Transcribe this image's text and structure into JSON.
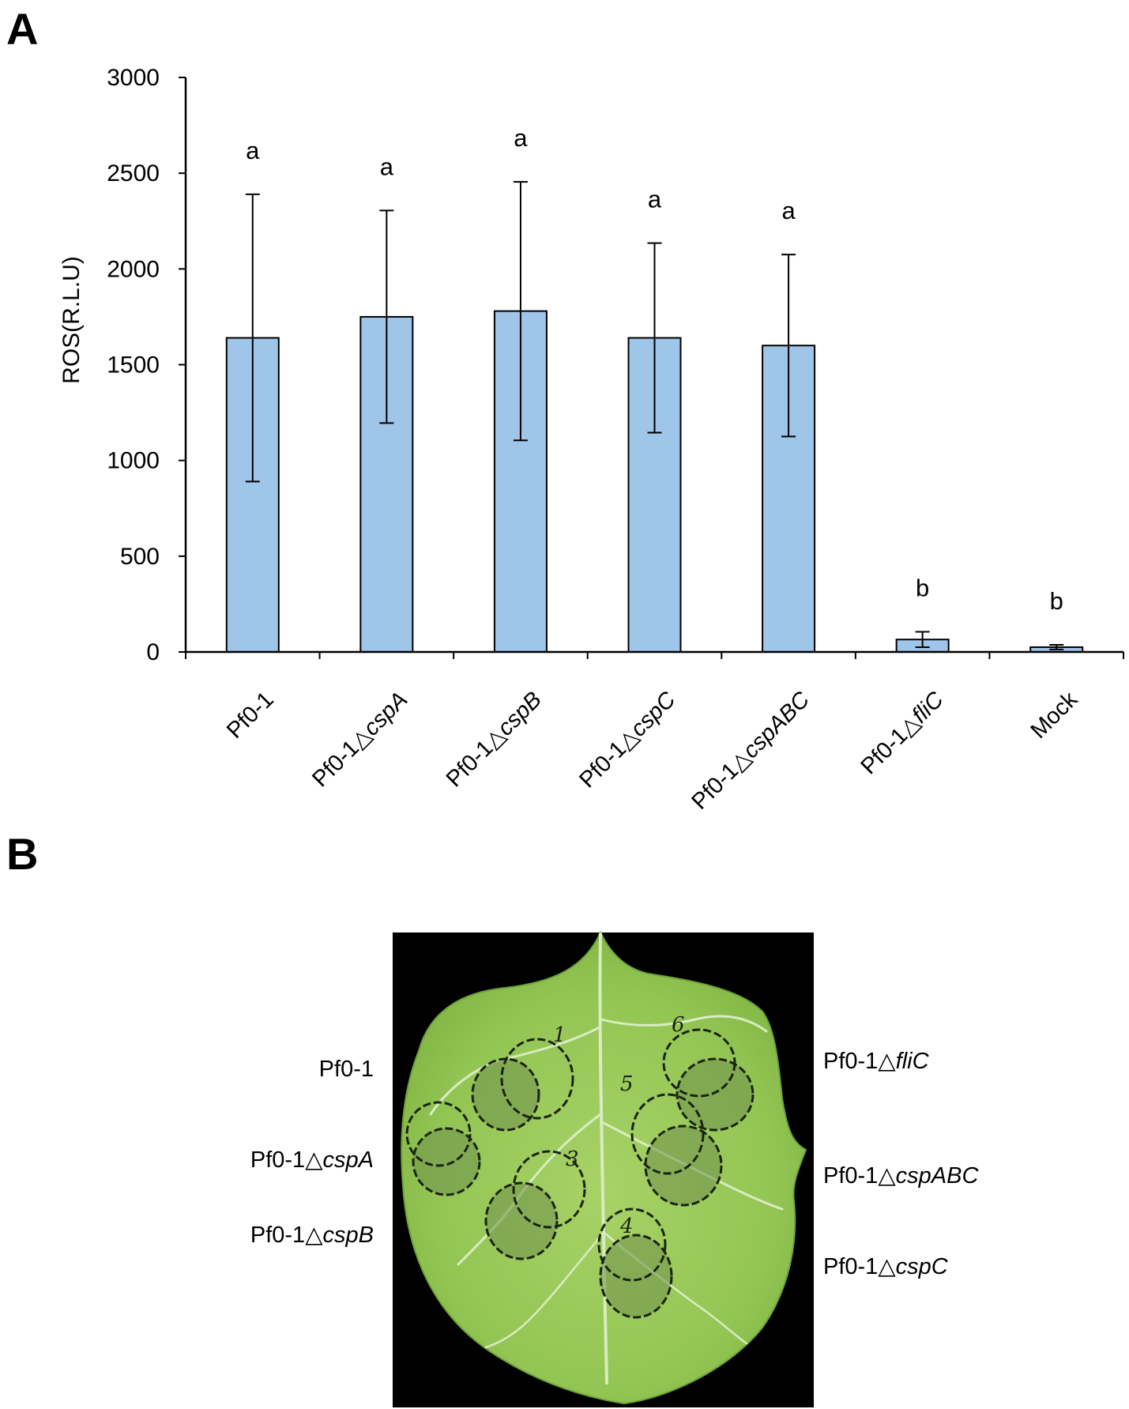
{
  "panels": {
    "a_label": "A",
    "b_label": "B"
  },
  "chart_data": {
    "type": "bar",
    "title": "",
    "xlabel": "",
    "ylabel": "ROS(R.L.U)",
    "ylim": [
      0,
      3000
    ],
    "yticks": [
      0,
      500,
      1000,
      1500,
      2000,
      2500,
      3000
    ],
    "categories": [
      {
        "prefix": "Pf0-1",
        "symbol": "",
        "gene": ""
      },
      {
        "prefix": "Pf0-1",
        "symbol": "△",
        "gene": "cspA"
      },
      {
        "prefix": "Pf0-1",
        "symbol": "△",
        "gene": "cspB"
      },
      {
        "prefix": "Pf0-1",
        "symbol": "△",
        "gene": "cspC"
      },
      {
        "prefix": "Pf0-1",
        "symbol": "△",
        "gene": "cspABC"
      },
      {
        "prefix": "Pf0-1",
        "symbol": "△",
        "gene": "fliC"
      },
      {
        "prefix": "Mock",
        "symbol": "",
        "gene": ""
      }
    ],
    "values": [
      1640,
      1750,
      1780,
      1640,
      1600,
      65,
      25
    ],
    "errors": [
      750,
      555,
      675,
      495,
      475,
      40,
      12
    ],
    "significance": [
      "a",
      "a",
      "a",
      "a",
      "a",
      "b",
      "b"
    ],
    "bar_color": "#9fc5e8",
    "grid": false,
    "legend": "none"
  },
  "leaf_image": {
    "background_color": "#000000",
    "leaf_color": "#8fc24f",
    "infiltration_marks": [
      "1",
      "6",
      "5",
      "3",
      "4"
    ],
    "labels_left": [
      {
        "prefix": "Pf0-1",
        "symbol": "",
        "gene": ""
      },
      {
        "prefix": "Pf0-1",
        "symbol": "△",
        "gene": "cspA"
      },
      {
        "prefix": "Pf0-1",
        "symbol": "△",
        "gene": "cspB"
      }
    ],
    "labels_right": [
      {
        "prefix": "Pf0-1",
        "symbol": "△",
        "gene": "fliC"
      },
      {
        "prefix": "Pf0-1",
        "symbol": "△",
        "gene": "cspABC"
      },
      {
        "prefix": "Pf0-1",
        "symbol": "△",
        "gene": "cspC"
      }
    ]
  }
}
